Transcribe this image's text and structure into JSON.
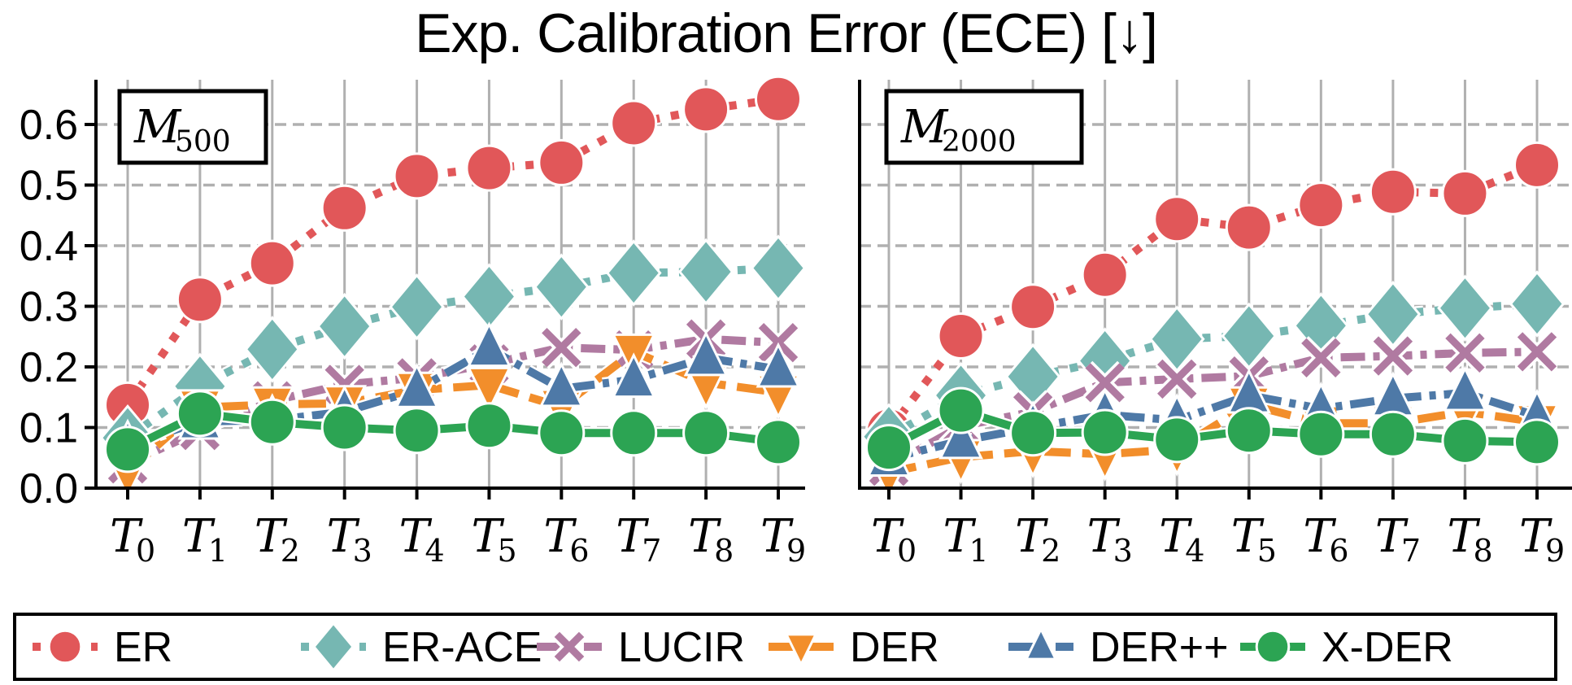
{
  "chart_data": [
    {
      "type": "line",
      "title": "Exp. Calibration Error (ECE) [↓]",
      "panel_label": "M500",
      "panel_label_main": "M",
      "panel_label_sub": "500",
      "xlabel": "",
      "ylabel": "",
      "x": [
        "T0",
        "T1",
        "T2",
        "T3",
        "T4",
        "T5",
        "T6",
        "T7",
        "T8",
        "T9"
      ],
      "ylim": [
        0.0,
        0.67
      ],
      "yticks": [
        0.0,
        0.1,
        0.2,
        0.3,
        0.4,
        0.5,
        0.6
      ],
      "grid": true,
      "series": [
        {
          "name": "ER",
          "values": [
            0.137,
            0.311,
            0.371,
            0.462,
            0.515,
            0.528,
            0.537,
            0.602,
            0.625,
            0.642
          ]
        },
        {
          "name": "ER-ACE",
          "values": [
            0.083,
            0.168,
            0.229,
            0.267,
            0.299,
            0.316,
            0.332,
            0.355,
            0.357,
            0.363
          ]
        },
        {
          "name": "LUCIR",
          "values": [
            0.04,
            0.095,
            0.144,
            0.171,
            0.182,
            0.205,
            0.232,
            0.228,
            0.246,
            0.24
          ]
        },
        {
          "name": "DER",
          "values": [
            0.027,
            0.133,
            0.138,
            0.14,
            0.162,
            0.17,
            0.134,
            0.225,
            0.174,
            0.158
          ]
        },
        {
          "name": "DER++",
          "values": [
            0.07,
            0.11,
            0.112,
            0.126,
            0.162,
            0.23,
            0.164,
            0.179,
            0.215,
            0.196
          ]
        },
        {
          "name": "X-DER",
          "values": [
            0.064,
            0.123,
            0.109,
            0.1,
            0.095,
            0.103,
            0.091,
            0.091,
            0.091,
            0.076
          ]
        }
      ]
    },
    {
      "type": "line",
      "title": "Exp. Calibration Error (ECE) [↓]",
      "panel_label": "M2000",
      "panel_label_main": "M",
      "panel_label_sub": "2000",
      "xlabel": "",
      "ylabel": "",
      "x": [
        "T0",
        "T1",
        "T2",
        "T3",
        "T4",
        "T5",
        "T6",
        "T7",
        "T8",
        "T9"
      ],
      "ylim": [
        0.0,
        0.67
      ],
      "yticks": [
        0.0,
        0.1,
        0.2,
        0.3,
        0.4,
        0.5,
        0.6
      ],
      "grid": true,
      "series": [
        {
          "name": "ER",
          "values": [
            0.095,
            0.251,
            0.299,
            0.352,
            0.444,
            0.43,
            0.467,
            0.489,
            0.486,
            0.533
          ]
        },
        {
          "name": "ER-ACE",
          "values": [
            0.085,
            0.153,
            0.184,
            0.21,
            0.246,
            0.251,
            0.268,
            0.287,
            0.297,
            0.304
          ]
        },
        {
          "name": "LUCIR",
          "values": [
            0.036,
            0.102,
            0.126,
            0.174,
            0.18,
            0.185,
            0.215,
            0.218,
            0.223,
            0.225
          ]
        },
        {
          "name": "DER",
          "values": [
            0.026,
            0.051,
            0.061,
            0.056,
            0.064,
            0.138,
            0.107,
            0.107,
            0.126,
            0.109
          ]
        },
        {
          "name": "DER++",
          "values": [
            0.049,
            0.078,
            0.1,
            0.121,
            0.112,
            0.153,
            0.131,
            0.148,
            0.157,
            0.119
          ]
        },
        {
          "name": "X-DER",
          "values": [
            0.067,
            0.128,
            0.091,
            0.092,
            0.08,
            0.095,
            0.089,
            0.089,
            0.078,
            0.076
          ]
        }
      ]
    }
  ],
  "figure": {
    "title": "Exp. Calibration Error (ECE) [↓]",
    "ytick_labels": [
      "0.0",
      "0.1",
      "0.2",
      "0.3",
      "0.4",
      "0.5",
      "0.6"
    ],
    "xtick_main": "T",
    "xtick_subs": [
      "0",
      "1",
      "2",
      "3",
      "4",
      "5",
      "6",
      "7",
      "8",
      "9"
    ],
    "legend_position": "bottom",
    "styles": [
      {
        "name": "ER",
        "color": "#e15759",
        "marker": "circle",
        "dash": "dotted"
      },
      {
        "name": "ER-ACE",
        "color": "#76b7b2",
        "marker": "diamond",
        "dash": "dotted"
      },
      {
        "name": "LUCIR",
        "color": "#b07aa1",
        "marker": "x",
        "dash": "dashdot"
      },
      {
        "name": "DER",
        "color": "#f28e2b",
        "marker": "triangle-down",
        "dash": "dashed"
      },
      {
        "name": "DER++",
        "color": "#4e79a7",
        "marker": "triangle-up",
        "dash": "dashdot"
      },
      {
        "name": "X-DER",
        "color": "#2ca453",
        "marker": "circle",
        "dash": "solid"
      }
    ],
    "grid_color": "#b0b0b0",
    "axis_color": "#000000"
  }
}
